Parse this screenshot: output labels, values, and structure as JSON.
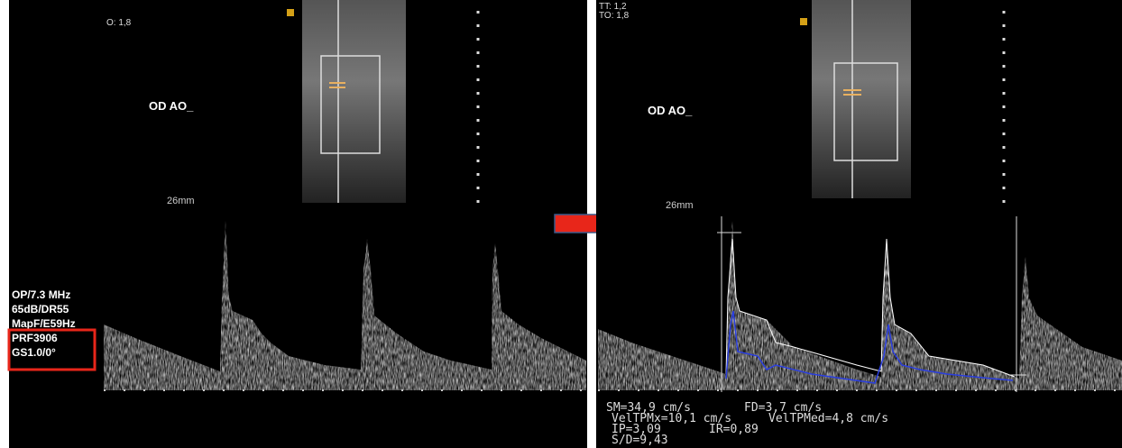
{
  "left_panel": {
    "header_lines": [
      "O: 1,8"
    ],
    "label": "OD  AO_",
    "depth": "26mm",
    "settings": [
      "OP/7.3 MHz",
      "65dB/DR55",
      "MapF/E59Hz",
      "PRF3906",
      "GS1.0/0°"
    ]
  },
  "right_panel": {
    "header_lines": [
      "TT: 1,2",
      "TO: 1,8"
    ],
    "label": "OD  AO_",
    "depth": "26mm",
    "measurements": [
      "SM=34,9 cm/s",
      "FD=3,7 cm/s",
      "VelTPMx=10,1 cm/s",
      "VelTPMed=4,8 cm/s",
      "IP=3,09",
      "IR=0,89",
      "S/D=9,43"
    ]
  }
}
